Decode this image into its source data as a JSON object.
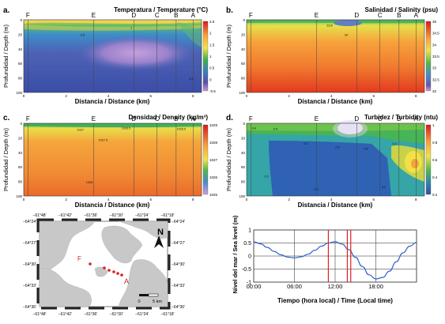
{
  "panels": [
    {
      "letter": "a.",
      "title": "Temperatura / Temperature (°C)",
      "xlabel": "Distancia / Distance (km)",
      "ylabel": "Profundidad / Depth (m)",
      "stations": [
        "F",
        "E",
        "D",
        "C",
        "B",
        "A"
      ],
      "station_km": [
        0.2,
        3.3,
        5.2,
        6.3,
        7.2,
        8.0
      ],
      "xticks": [
        "0",
        "2",
        "4",
        "6",
        "8"
      ],
      "yticks": [
        "0",
        "20",
        "40",
        "60",
        "80",
        "100"
      ],
      "cbar_ticks": [
        "2.5",
        "2",
        "1.5",
        "1",
        "0.5",
        "0",
        "-0.5"
      ],
      "contour_labels": [
        "0.5",
        "1",
        "0.5"
      ]
    },
    {
      "letter": "b.",
      "title": "Salinidad / Salinity (psu)",
      "xlabel": "Distancia / Distance (km)",
      "ylabel": "Profundidad / Depth (m)",
      "stations": [
        "F",
        "E",
        "D",
        "C",
        "B",
        "A"
      ],
      "station_km": [
        0.2,
        3.3,
        5.2,
        6.3,
        7.2,
        8.0
      ],
      "xticks": [
        "0",
        "2",
        "4",
        "6",
        "8"
      ],
      "yticks": [
        "0",
        "20",
        "40",
        "60",
        "80",
        "100"
      ],
      "cbar_ticks": [
        "35",
        "34.5",
        "34",
        "33.5",
        "33",
        "32.5",
        "32"
      ],
      "contour_labels": [
        "33.8",
        "34"
      ]
    },
    {
      "letter": "c.",
      "title": "Densidad / Density (kg/m³)",
      "xlabel": "Distancia / Distance (km)",
      "ylabel": "Profundidad / Depth (m)",
      "stations": [
        "F",
        "E",
        "D",
        "C",
        "B",
        "A"
      ],
      "station_km": [
        0.2,
        3.3,
        5.2,
        6.3,
        7.2,
        8.0
      ],
      "xticks": [
        "0",
        "2",
        "4",
        "6",
        "8"
      ],
      "yticks": [
        "0",
        "20",
        "40",
        "60",
        "80",
        "100"
      ],
      "cbar_ticks": [
        "1029",
        "1028",
        "1027",
        "1026",
        "1025"
      ],
      "contour_labels": [
        "1027",
        "1026.5",
        "1027.5",
        "1026.5",
        "1028"
      ]
    },
    {
      "letter": "d.",
      "title": "Turbidez / Turbidity (ntu)",
      "xlabel": "Distancia / Distance (km)",
      "ylabel": "Profundidad / Depth (m)",
      "stations": [
        "F",
        "E",
        "D",
        "C",
        "B",
        "A"
      ],
      "station_km": [
        0.2,
        3.3,
        5.2,
        6.3,
        7.2,
        8.0
      ],
      "xticks": [
        "0",
        "2",
        "4",
        "6",
        "8"
      ],
      "yticks": [
        "0",
        "20",
        "40",
        "60",
        "80",
        "100"
      ],
      "cbar_ticks": [
        "1",
        "0.8",
        "0.6",
        "0.4",
        "0.2"
      ],
      "contour_labels": [
        "0.4",
        "0.4",
        "0.3",
        "0.5",
        "0.6",
        "0.4",
        "0.2",
        "0.3",
        "0.4"
      ]
    }
  ],
  "map": {
    "top_lon": [
      "−61°48'",
      "−61°42'",
      "−61°36'",
      "−61°30'",
      "−61°24'",
      "−61°18'"
    ],
    "lat": [
      "−64°24'",
      "−64°27'",
      "−64°30'",
      "−64°33'",
      "−64°36'"
    ],
    "north": "N",
    "station_F": "F",
    "station_A": "A",
    "scale": [
      "0",
      "5 km"
    ]
  },
  "chart_data": {
    "type": "line",
    "title": "",
    "xlabel": "Tiempo (hora local) / Time (Local time)",
    "ylabel": "Nivel del mar / Sea level (m)",
    "xticks": [
      "00:00",
      "06:00",
      "12:00",
      "18:00"
    ],
    "yticks": [
      "1",
      "0.5",
      "0",
      "-0.5",
      "-1"
    ],
    "xlim": [
      0,
      24
    ],
    "ylim": [
      -1,
      1
    ],
    "grid": true,
    "x": [
      0,
      1,
      2,
      3,
      4,
      5,
      6,
      7,
      8,
      9,
      10,
      11,
      12,
      13,
      14,
      15,
      16,
      17,
      18,
      19,
      20,
      21,
      22,
      23,
      24
    ],
    "values": [
      0.55,
      0.47,
      0.33,
      0.18,
      0.05,
      -0.04,
      -0.07,
      -0.03,
      0.07,
      0.22,
      0.38,
      0.5,
      0.55,
      0.46,
      0.25,
      -0.05,
      -0.4,
      -0.72,
      -0.88,
      -0.82,
      -0.58,
      -0.22,
      0.12,
      0.38,
      0.52
    ],
    "markers_x": [
      11.0,
      13.8,
      14.3
    ]
  }
}
